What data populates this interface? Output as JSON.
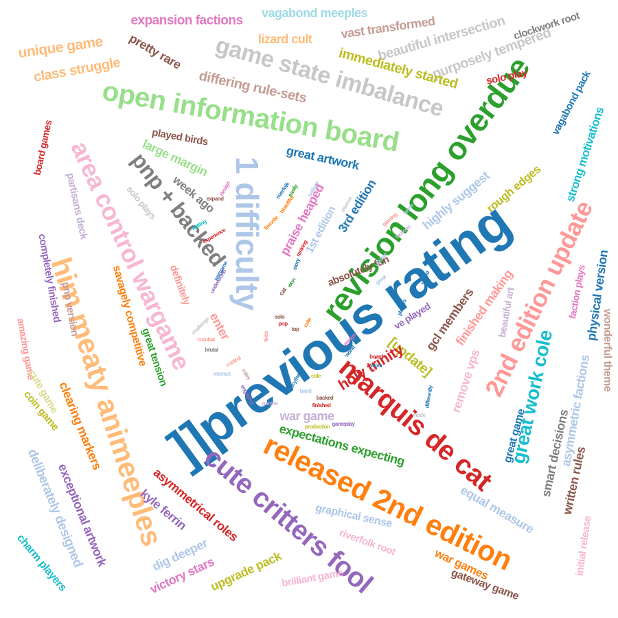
{
  "palette": {
    "blue": "#1f77b4",
    "lightblue": "#aec7e8",
    "orange": "#ff7f0e",
    "lightorange": "#ffbb78",
    "green": "#2ca02c",
    "lightgreen": "#98df8a",
    "red": "#d62728",
    "pink": "#ff9896",
    "purple": "#9467bd",
    "lavender": "#c5b0d5",
    "brown": "#8c564b",
    "tan": "#c49c94",
    "magenta": "#e377c2",
    "lightmagenta": "#f7b6d2",
    "gray": "#7f7f7f",
    "silver": "#c7c7c7",
    "olive": "#bcbd22",
    "khaki": "#dbdb8d",
    "cyan": "#17becf",
    "lightcyan": "#9edae5"
  },
  "words": [
    {
      "text": "]]previous rating",
      "color": "blue"
    },
    {
      "text": "revision long overdue",
      "color": "green"
    },
    {
      "text": "open information board",
      "color": "lightgreen"
    },
    {
      "text": "1 difficulty",
      "color": "lightblue"
    },
    {
      "text": "game state imbalance",
      "color": "silver"
    },
    {
      "text": "released 2nd edition",
      "color": "orange"
    },
    {
      "text": "cute critters fool",
      "color": "purple"
    },
    {
      "text": "marquis de cat",
      "color": "red"
    },
    {
      "text": "him meaty animeeples",
      "color": "lightorange"
    },
    {
      "text": "area control wargame",
      "color": "lightmagenta"
    },
    {
      "text": "2nd edition update",
      "color": "pink"
    },
    {
      "text": "pnp + backed",
      "color": "gray"
    },
    {
      "text": "great work cole",
      "color": "cyan"
    },
    {
      "text": "expansion factions",
      "color": "magenta"
    },
    {
      "text": "vagabond meeples",
      "color": "lightcyan"
    },
    {
      "text": "unique game",
      "color": "lightorange"
    },
    {
      "text": "class struggle",
      "color": "lightorange"
    },
    {
      "text": "pretty rare",
      "color": "brown"
    },
    {
      "text": "lizard cult",
      "color": "lightorange"
    },
    {
      "text": "vast transformed",
      "color": "tan"
    },
    {
      "text": "beautiful intersection",
      "color": "silver"
    },
    {
      "text": "clockwork root",
      "color": "gray"
    },
    {
      "text": "purposely tempered",
      "color": "silver"
    },
    {
      "text": "immediately started",
      "color": "olive"
    },
    {
      "text": "solo play",
      "color": "red"
    },
    {
      "text": "vagabond pack",
      "color": "blue"
    },
    {
      "text": "differing rule-sets",
      "color": "tan"
    },
    {
      "text": "strong motivations",
      "color": "cyan"
    },
    {
      "text": "played birds",
      "color": "brown"
    },
    {
      "text": "large margin",
      "color": "lightgreen"
    },
    {
      "text": "great artwork",
      "color": "blue"
    },
    {
      "text": "board games",
      "color": "red"
    },
    {
      "text": "partisans deck",
      "color": "lavender"
    },
    {
      "text": "week ago",
      "color": "gray"
    },
    {
      "text": "3rd edition",
      "color": "blue"
    },
    {
      "text": "praise heaped",
      "color": "magenta"
    },
    {
      "text": "1st edition",
      "color": "lightblue"
    },
    {
      "text": "highly suggest",
      "color": "lightblue"
    },
    {
      "text": "rough edges",
      "color": "olive"
    },
    {
      "text": "solo plays",
      "color": "silver"
    },
    {
      "text": "[update]",
      "color": "olive"
    },
    {
      "text": "completely finished",
      "color": "purple"
    },
    {
      "text": "savagely competitive",
      "color": "orange"
    },
    {
      "text": "pnp version",
      "color": "tan"
    },
    {
      "text": "definitely",
      "color": "pink"
    },
    {
      "text": "absolutely fun",
      "color": "brown"
    },
    {
      "text": "gcl members",
      "color": "brown"
    },
    {
      "text": "finished making",
      "color": "pink"
    },
    {
      "text": "faction plays",
      "color": "magenta"
    },
    {
      "text": "physical version",
      "color": "blue"
    },
    {
      "text": "wonderful theme",
      "color": "tan"
    },
    {
      "text": "amazing game",
      "color": "pink"
    },
    {
      "text": "holy trinity",
      "color": "red"
    },
    {
      "text": "ve played",
      "color": "purple"
    },
    {
      "text": "beautiful art",
      "color": "lavender"
    },
    {
      "text": "great tension",
      "color": "green"
    },
    {
      "text": "enter",
      "color": "pink"
    },
    {
      "text": "cute game",
      "color": "khaki"
    },
    {
      "text": "coin game",
      "color": "olive"
    },
    {
      "text": "clearing markers",
      "color": "orange"
    },
    {
      "text": "remove vps",
      "color": "lightmagenta"
    },
    {
      "text": "asymmetric factions",
      "color": "lightblue"
    },
    {
      "text": "war game",
      "color": "lavender"
    },
    {
      "text": "great game",
      "color": "blue"
    },
    {
      "text": "smart decisions",
      "color": "gray"
    },
    {
      "text": "written rules",
      "color": "brown"
    },
    {
      "text": "initial release",
      "color": "lightmagenta"
    },
    {
      "text": "deliberately designed",
      "color": "lightblue"
    },
    {
      "text": "exceptional artwork",
      "color": "purple"
    },
    {
      "text": "expectations expecting",
      "color": "green"
    },
    {
      "text": "equal measure",
      "color": "lightblue"
    },
    {
      "text": "asymmetrical roles",
      "color": "red"
    },
    {
      "text": "kyle ferrin",
      "color": "purple"
    },
    {
      "text": "graphical sense",
      "color": "lightblue"
    },
    {
      "text": "riverfolk root",
      "color": "lightmagenta"
    },
    {
      "text": "war games",
      "color": "orange"
    },
    {
      "text": "gateway game",
      "color": "brown"
    },
    {
      "text": "charm players",
      "color": "cyan"
    },
    {
      "text": "dig deeper",
      "color": "lightblue"
    },
    {
      "text": "victory stars",
      "color": "magenta"
    },
    {
      "text": "upgrade pack",
      "color": "olive"
    },
    {
      "text": "brilliant game",
      "color": "lightmagenta"
    },
    {
      "text": "riverfolk",
      "color": "blue"
    },
    {
      "text": "beautiful",
      "color": "orange"
    },
    {
      "text": "easily",
      "color": "green"
    },
    {
      "text": "brilliant",
      "color": "lightblue"
    },
    {
      "text": "intense",
      "color": "silver"
    },
    {
      "text": "gaming",
      "color": "pink"
    },
    {
      "text": "factions",
      "color": "lavender"
    },
    {
      "text": "batting",
      "color": "cyan"
    },
    {
      "text": "experience",
      "color": "red"
    },
    {
      "text": "expand",
      "color": "brown"
    },
    {
      "text": "design",
      "color": "magenta"
    },
    {
      "text": "favorite",
      "color": "orange"
    },
    {
      "text": "board",
      "color": "red"
    },
    {
      "text": "work",
      "color": "blue"
    },
    {
      "text": "solo",
      "color": "brown"
    },
    {
      "text": "cute",
      "color": "orange"
    },
    {
      "text": "cat",
      "color": "brown"
    },
    {
      "text": "won",
      "color": "green"
    },
    {
      "text": "pnp",
      "color": "red"
    },
    {
      "text": "players",
      "color": "blue"
    },
    {
      "text": "backed",
      "color": "brown"
    },
    {
      "text": "finished",
      "color": "red"
    },
    {
      "text": "production",
      "color": "olive"
    },
    {
      "text": "gameplay",
      "color": "purple"
    },
    {
      "text": "scythe",
      "color": "blue"
    },
    {
      "text": "games",
      "color": "lavender"
    },
    {
      "text": "things",
      "color": "magenta"
    },
    {
      "text": "world",
      "color": "blue"
    },
    {
      "text": "control",
      "color": "pink"
    },
    {
      "text": "wargame",
      "color": "blue"
    },
    {
      "text": "underworld",
      "color": "purple"
    },
    {
      "text": "combat",
      "color": "pink"
    },
    {
      "text": "brutal",
      "color": "gray"
    },
    {
      "text": "story",
      "color": "blue"
    },
    {
      "text": "update",
      "color": "lightblue"
    },
    {
      "text": "based",
      "color": "blue"
    },
    {
      "text": "ranking",
      "color": "red"
    },
    {
      "text": "top",
      "color": "brown"
    },
    {
      "text": "feels",
      "color": "pink"
    },
    {
      "text": "interact",
      "color": "lightblue"
    },
    {
      "text": "challenge",
      "color": "silver"
    },
    {
      "text": "cole",
      "color": "olive"
    },
    {
      "text": "band",
      "color": "lightblue"
    },
    {
      "text": "differently",
      "color": "blue"
    },
    {
      "text": "made",
      "color": "silver"
    },
    {
      "text": "engaging",
      "color": "purple"
    },
    {
      "text": "roles",
      "color": "tan"
    },
    {
      "text": "tense",
      "color": "lightblue"
    },
    {
      "text": "great",
      "color": "lightblue"
    }
  ]
}
